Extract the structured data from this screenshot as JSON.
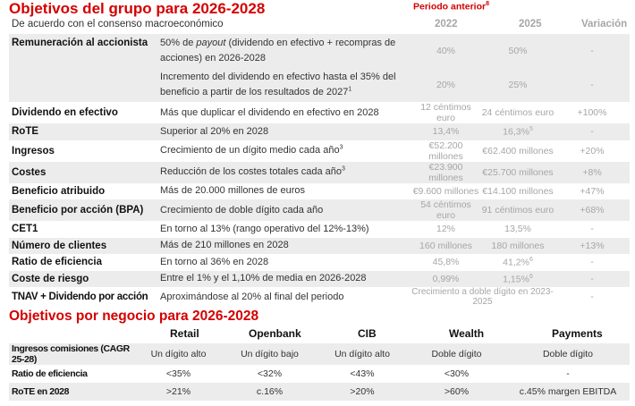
{
  "header": {
    "title": "Objetivos del grupo para 2026-2028",
    "subtitle": "De acuerdo con el consenso macroeconómico",
    "periodo": "Periodo anterior",
    "periodo_sup": "8",
    "col_2022": "2022",
    "col_2025": "2025",
    "col_var": "Variación"
  },
  "rows": [
    {
      "label": "Remuneración al accionista",
      "desc_a": "50% de ",
      "desc_italic": "payout",
      "desc_b": " (dividendo en efectivo + recompras de acciones) en 2026-2028",
      "sup": "",
      "v2022": "40%",
      "v2025": "50%",
      "var": "-"
    },
    {
      "label": "",
      "desc_a": "Incremento del dividendo en efectivo hasta el 35% del beneficio a partir de los resultados de 2027",
      "desc_italic": "",
      "desc_b": "",
      "sup": "1",
      "v2022": "20%",
      "v2025": "25%",
      "var": "-"
    },
    {
      "label": "Dividendo en efectivo",
      "desc_a": "Más que duplicar el dividendo en efectivo en 2028",
      "desc_italic": "",
      "desc_b": "",
      "sup": "",
      "v2022": "12 céntimos euro",
      "v2025": "24 céntimos euro",
      "var": "+100%"
    },
    {
      "label": "RoTE",
      "desc_a": "Superior al 20% en 2028",
      "desc_italic": "",
      "desc_b": "",
      "sup": "",
      "v2022": "13,4%",
      "v2025": "16,3%",
      "v2025_sup": "5",
      "var": "-"
    },
    {
      "label": "Ingresos",
      "desc_a": "Crecimiento de un dígito medio cada año",
      "desc_italic": "",
      "desc_b": "",
      "sup": "3",
      "v2022": "€52.200 millones",
      "v2025": "€62.400 millones",
      "var": "+20%"
    },
    {
      "label": "Costes",
      "desc_a": "Reducción de los costes totales cada año",
      "desc_italic": "",
      "desc_b": "",
      "sup": "3",
      "v2022": "€23.900 millones",
      "v2025": "€25.700 millones",
      "var": "+8%"
    },
    {
      "label": "Beneficio atribuido",
      "desc_a": "Más de 20.000 millones de euros",
      "desc_italic": "",
      "desc_b": "",
      "sup": "",
      "v2022": "€9.600 millones",
      "v2025": "€14.100 millones",
      "var": "+47%"
    },
    {
      "label": "Beneficio por acción (BPA)",
      "desc_a": "Crecimiento de doble dígito cada año",
      "desc_italic": "",
      "desc_b": "",
      "sup": "",
      "v2022": "54 céntimos euro",
      "v2025": "91 céntimos euro",
      "var": "+68%"
    },
    {
      "label": "CET1",
      "desc_a": "En torno al 13% (rango operativo del 12%-13%)",
      "desc_italic": "",
      "desc_b": "",
      "sup": "",
      "v2022": "12%",
      "v2025": "13,5%",
      "var": "-"
    },
    {
      "label": "Número de clientes",
      "desc_a": "Más de 210 millones en 2028",
      "desc_italic": "",
      "desc_b": "",
      "sup": "",
      "v2022": "160 millones",
      "v2025": "180 millones",
      "var": "+13%"
    },
    {
      "label": "Ratio de eficiencia",
      "desc_a": "En torno al 36% en 2028",
      "desc_italic": "",
      "desc_b": "",
      "sup": "",
      "v2022": "45,8%",
      "v2025": "41,2%",
      "v2025_sup": "6",
      "var": "-"
    },
    {
      "label": "Coste de riesgo",
      "desc_a": "Entre el 1% y el 1,10% de media en 2026-2028",
      "desc_italic": "",
      "desc_b": "",
      "sup": "",
      "v2022": "0,99%",
      "v2025": "1,15%",
      "v2025_sup": "6",
      "var": "-"
    },
    {
      "label": "TNAV + Dividendo por acción",
      "desc_a": "Aproximándose al 20% al final del periodo",
      "desc_italic": "",
      "desc_b": "",
      "sup": "",
      "merged": "Crecimiento a doble dígito en 2023-2025",
      "var": "-"
    }
  ],
  "section2": {
    "title": "Objetivos por negocio para 2026-2028",
    "headers": [
      "Retail",
      "Openbank",
      "CIB",
      "Wealth",
      "Payments"
    ],
    "rows": [
      {
        "label": "Ingresos comisiones (CAGR 25-28)",
        "values": [
          "Un dígito alto",
          "Un dígito bajo",
          "Un dígito alto",
          "Doble dígito",
          "Doble dígito"
        ]
      },
      {
        "label": "Ratio de eficiencia",
        "values": [
          "<35%",
          "<32%",
          "<43%",
          "<30%",
          "-"
        ]
      },
      {
        "label": "RoTE en 2028",
        "values": [
          ">21%",
          "c.16%",
          ">20%",
          ">60%",
          "c.45% margen EBITDA"
        ]
      }
    ]
  },
  "colors": {
    "accent": "#d40000",
    "shade": "#ececec",
    "muted": "#a6a6a6"
  }
}
